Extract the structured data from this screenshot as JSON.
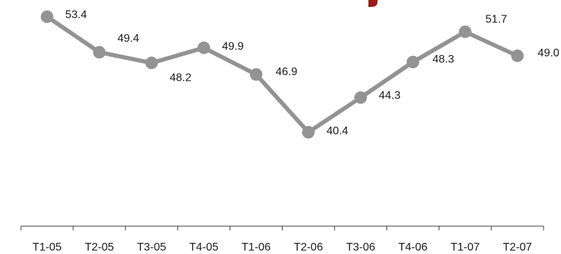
{
  "chart_data": {
    "type": "line",
    "title": "",
    "xlabel": "",
    "ylabel": "",
    "categories": [
      "T1-05",
      "T2-05",
      "T3-05",
      "T4-05",
      "T1-06",
      "T2-06",
      "T3-06",
      "T4-06",
      "T1-07",
      "T2-07"
    ],
    "series": [
      {
        "values": [
          53.4,
          49.4,
          48.2,
          49.9,
          46.9,
          40.4,
          44.3,
          48.3,
          51.7,
          49.0
        ],
        "labels": [
          "53.4",
          "49.4",
          "48.2",
          "49.9",
          "46.9",
          "40.4",
          "44.3",
          "48.3",
          "51.7",
          "49.0"
        ]
      }
    ],
    "ylim": [
      30,
      55
    ],
    "grid": false,
    "legend": "none",
    "colors": {
      "line": "#939393",
      "marker": "#939393",
      "axis": "#333333",
      "text": "#1a1a1a",
      "title_fragment": "#9b1b1b"
    }
  }
}
